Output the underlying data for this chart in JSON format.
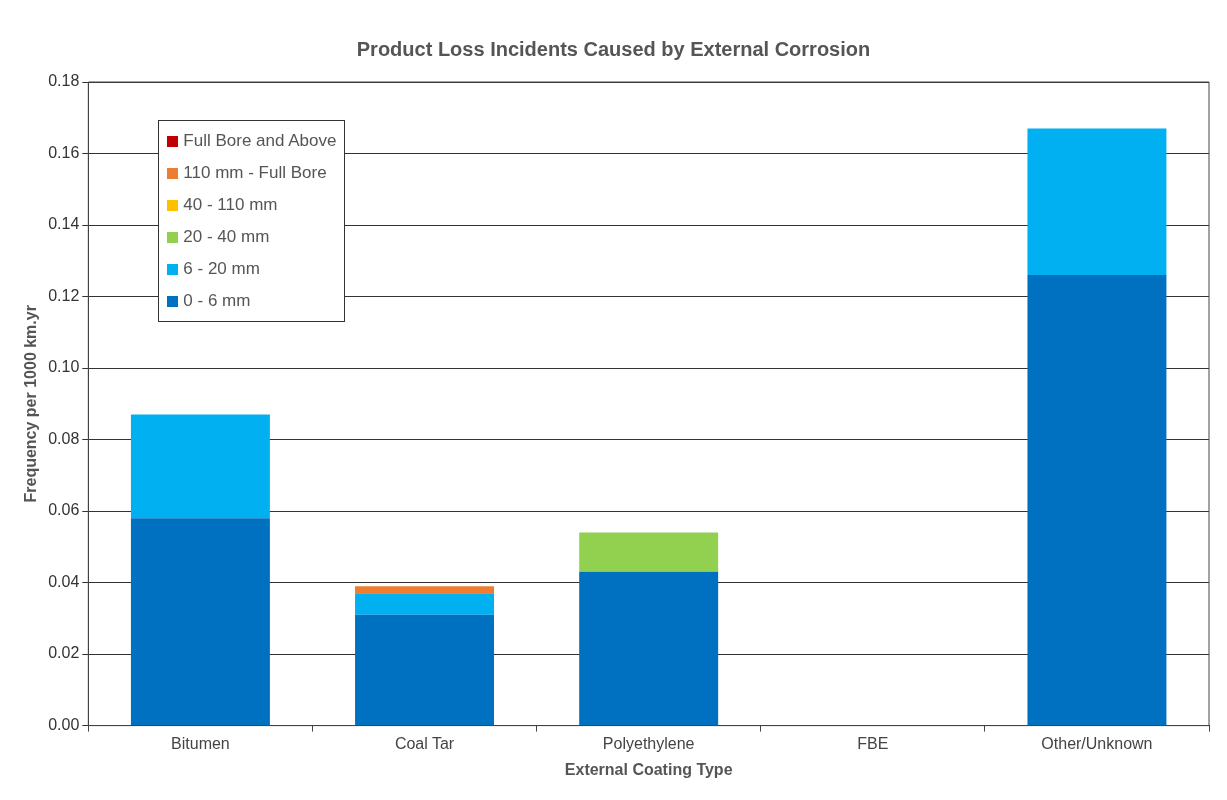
{
  "chart_data": {
    "type": "bar",
    "title": "Product Loss Incidents Caused by External Corrosion",
    "xlabel": "External Coating Type",
    "ylabel": "Frequency per 1000 km.yr",
    "categories": [
      "Bitumen",
      "Coal Tar",
      "Polyethylene",
      "FBE",
      "Other/Unknown"
    ],
    "stacked": true,
    "series": [
      {
        "name": "0 - 6 mm",
        "color": "#0070c0",
        "values": [
          0.058,
          0.031,
          0.043,
          0,
          0.126
        ]
      },
      {
        "name": "6 - 20 mm",
        "color": "#00b0f0",
        "values": [
          0.029,
          0.006,
          0,
          0,
          0.041
        ]
      },
      {
        "name": "20 - 40 mm",
        "color": "#92d050",
        "values": [
          0,
          0,
          0.011,
          0,
          0
        ]
      },
      {
        "name": "40 - 110 mm",
        "color": "#ffc000",
        "values": [
          0,
          0,
          0,
          0,
          0
        ]
      },
      {
        "name": "110 mm - Full Bore",
        "color": "#ed7d31",
        "values": [
          0,
          0.002,
          0,
          0,
          0
        ]
      },
      {
        "name": "Full Bore and Above",
        "color": "#c00000",
        "values": [
          0,
          0,
          0,
          0,
          0
        ]
      }
    ],
    "ylim": [
      0,
      0.18
    ],
    "yticks": [
      {
        "value": 0,
        "label": "0.00"
      },
      {
        "value": 0.02,
        "label": "0.02"
      },
      {
        "value": 0.04,
        "label": "0.04"
      },
      {
        "value": 0.06,
        "label": "0.06"
      },
      {
        "value": 0.08,
        "label": "0.08"
      },
      {
        "value": 0.1,
        "label": "0.10"
      },
      {
        "value": 0.12,
        "label": "0.12"
      },
      {
        "value": 0.14,
        "label": "0.14"
      },
      {
        "value": 0.16,
        "label": "0.16"
      },
      {
        "value": 0.18,
        "label": "0.18"
      }
    ],
    "grid": "y",
    "legend": "top left"
  }
}
